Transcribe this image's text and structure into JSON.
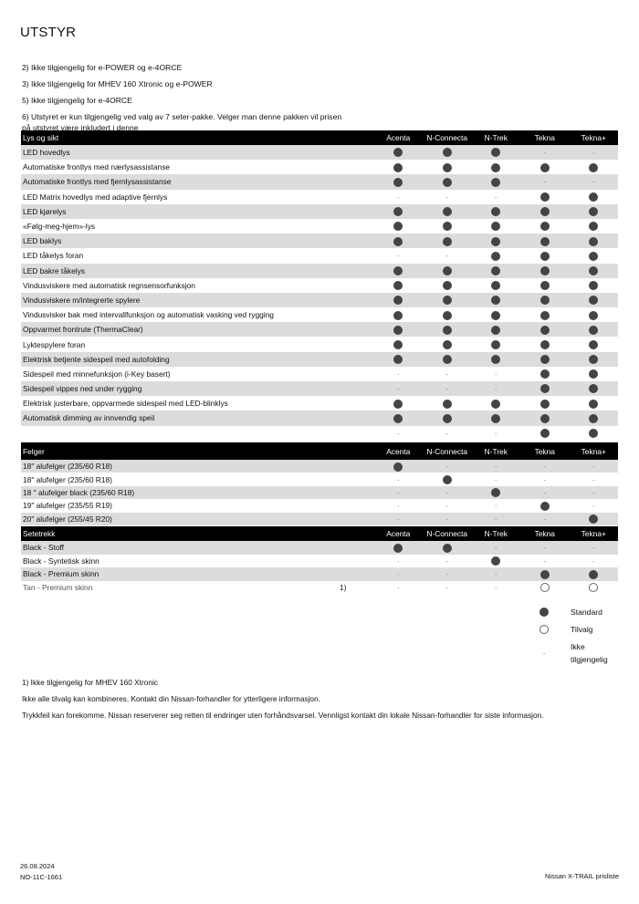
{
  "title": "UTSTYR",
  "notes": [
    "2) Ikke tilgjengelig for e-POWER og e-4ORCE",
    "3) Ikke tilgjengelig for MHEV 160 Xtronic og e-POWER",
    "5) Ikke tilgjengelig for e-4ORCE",
    "6) Utstyret er kun tilgjengelig ved valg av 7 seter-pakke. Velger man denne pakken vil prisen på utstyret være inkludert i denne"
  ],
  "columns": [
    "Acenta",
    "N-Connecta",
    "N-Trek",
    "Tekna",
    "Tekna+"
  ],
  "sections": [
    {
      "title": "Lys og sikt",
      "rows": [
        {
          "label": "LED hovedlys",
          "note": "",
          "values": [
            "S",
            "S",
            "S",
            "-",
            "-"
          ]
        },
        {
          "label": "Automatiske frontlys med nærlysassistanse",
          "note": "",
          "values": [
            "S",
            "S",
            "S",
            "S",
            "S"
          ]
        },
        {
          "label": "Automatiske frontlys med fjernlysassistanse",
          "note": "",
          "values": [
            "S",
            "S",
            "S",
            "-",
            "-"
          ]
        },
        {
          "label": "LED Matrix hovedlys med adaptive fjernlys",
          "note": "",
          "values": [
            "-",
            "-",
            "-",
            "S",
            "S"
          ]
        },
        {
          "label": "LED kjørelys",
          "note": "",
          "values": [
            "S",
            "S",
            "S",
            "S",
            "S"
          ]
        },
        {
          "label": "«Følg-meg-hjem»-lys",
          "note": "",
          "values": [
            "S",
            "S",
            "S",
            "S",
            "S"
          ]
        },
        {
          "label": "LED baklys",
          "note": "",
          "values": [
            "S",
            "S",
            "S",
            "S",
            "S"
          ]
        },
        {
          "label": "LED tåkelys foran",
          "note": "",
          "values": [
            "-",
            "-",
            "S",
            "S",
            "S"
          ]
        },
        {
          "label": "LED bakre tåkelys",
          "note": "",
          "values": [
            "S",
            "S",
            "S",
            "S",
            "S"
          ]
        },
        {
          "label": "Vindusviskere med automatisk regnsensorfunksjon",
          "note": "",
          "values": [
            "S",
            "S",
            "S",
            "S",
            "S"
          ]
        },
        {
          "label": "Vindusviskere m/integrerte spylere",
          "note": "",
          "values": [
            "S",
            "S",
            "S",
            "S",
            "S"
          ]
        },
        {
          "label": "Vindusvisker bak med intervallfunksjon og automatisk vasking ved rygging",
          "note": "",
          "values": [
            "S",
            "S",
            "S",
            "S",
            "S"
          ]
        },
        {
          "label": "Oppvarmet frontrute (ThermaClear)",
          "note": "",
          "values": [
            "S",
            "S",
            "S",
            "S",
            "S"
          ]
        },
        {
          "label": "Lyktespylere foran",
          "note": "",
          "values": [
            "S",
            "S",
            "S",
            "S",
            "S"
          ]
        },
        {
          "label": "Elektrisk betjente sidespeil med autofolding",
          "note": "",
          "values": [
            "S",
            "S",
            "S",
            "S",
            "S"
          ]
        },
        {
          "label": "Sidespeil med minnefunksjon (i-Key basert)",
          "note": "",
          "values": [
            "-",
            "-",
            "-",
            "S",
            "S"
          ]
        },
        {
          "label": "Sidespeil vippes ned under rygging",
          "note": "",
          "values": [
            "-",
            "-",
            "-",
            "S",
            "S"
          ]
        },
        {
          "label": "Elektrisk justerbare, oppvarmede sidespeil med LED-blinklys",
          "note": "",
          "values": [
            "S",
            "S",
            "S",
            "S",
            "S"
          ]
        },
        {
          "label": "Automatisk dimming av innvendig speil",
          "note": "",
          "values": [
            "S",
            "S",
            "S",
            "S",
            "S"
          ]
        },
        {
          "label": "",
          "note": "",
          "values": [
            "-",
            "-",
            "-",
            "S",
            "S"
          ]
        }
      ]
    },
    {
      "title": "Felger",
      "rows": [
        {
          "label": "18\" alufelger (235/60 R18)",
          "note": "",
          "values": [
            "S",
            "-",
            "-",
            "-",
            "-"
          ]
        },
        {
          "label": "18\" alufelger (235/60 R18)",
          "note": "",
          "values": [
            "-",
            "S",
            "-",
            "-",
            "-"
          ]
        },
        {
          "label": "18 \" alufelger black (235/60 R18)",
          "note": "",
          "values": [
            "-",
            "-",
            "S",
            "-",
            "-"
          ]
        },
        {
          "label": "19\" alufelger (235/55 R19)",
          "note": "",
          "values": [
            "-",
            "-",
            "-",
            "S",
            "-"
          ]
        },
        {
          "label": "20\" alufelger (255/45 R20)",
          "note": "",
          "values": [
            "-",
            "-",
            "-",
            "-",
            "S"
          ]
        }
      ]
    },
    {
      "title": "Setetrekk",
      "rows": [
        {
          "label": "Black - Stoff",
          "note": "",
          "values": [
            "S",
            "S",
            "-",
            "-",
            "-"
          ]
        },
        {
          "label": "Black - Syntetisk skinn",
          "note": "",
          "values": [
            "-",
            "-",
            "S",
            "-",
            "-"
          ]
        },
        {
          "label": "Black - Premium skinn",
          "note": "",
          "values": [
            "-",
            "-",
            "-",
            "S",
            "S"
          ]
        },
        {
          "label": "Tan - Premium skinn",
          "note": "1)",
          "values": [
            "-",
            "-",
            "-",
            "O",
            "O"
          ]
        }
      ]
    }
  ],
  "legend": [
    {
      "symbol": "S",
      "label": "Standard"
    },
    {
      "symbol": "O",
      "label": "Tilvalg"
    },
    {
      "symbol": "-",
      "label": "Ikke tilgjengelig"
    }
  ],
  "footnotes": [
    "1) Ikke tilgjengelig for MHEV 160 Xtronic",
    "Ikke alle tilvalg kan kombineres. Kontakt din Nissan-forhandler for ytterligere informasjon.",
    "Trykkfeil kan forekomme. Nissan reserverer seg retten til endringer uten forhåndsvarsel. Vennligst kontakt din lokale Nissan-forhandler for siste informasjon."
  ],
  "footer": {
    "date": "26.08.2024",
    "code": "NO-11C-1661",
    "doc_title": "Nissan X-TRAIL prisliste"
  },
  "colors": {
    "header_bg": "#000000",
    "stripe": "#dcdcdc",
    "bullet": "#444444"
  }
}
